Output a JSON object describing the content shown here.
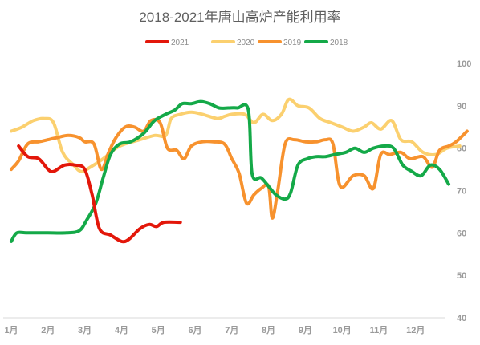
{
  "chart_data": {
    "type": "line",
    "title": "2018-2021年唐山高炉产能利用率",
    "xlabel": "",
    "ylabel": "",
    "x_categories": [
      "1月",
      "2月",
      "3月",
      "4月",
      "5月",
      "6月",
      "7月",
      "8月",
      "9月",
      "10月",
      "11月",
      "12月"
    ],
    "x_range": [
      1,
      13.2
    ],
    "ylim": [
      40,
      100
    ],
    "y_ticks": [
      40,
      50,
      60,
      70,
      80,
      90,
      100
    ],
    "y_axis_side": "right",
    "grid": false,
    "legend_position": "top-center",
    "series": [
      {
        "name": "2021",
        "color": "#e3170a",
        "points": [
          [
            1.2,
            80.5
          ],
          [
            1.45,
            78.0
          ],
          [
            1.75,
            77.5
          ],
          [
            2.0,
            75.0
          ],
          [
            2.15,
            74.5
          ],
          [
            2.45,
            76.0
          ],
          [
            2.75,
            76.0
          ],
          [
            3.0,
            75.0
          ],
          [
            3.2,
            69.0
          ],
          [
            3.4,
            61.0
          ],
          [
            3.7,
            59.5
          ],
          [
            4.0,
            58.0
          ],
          [
            4.2,
            58.5
          ],
          [
            4.5,
            61.0
          ],
          [
            4.75,
            62.0
          ],
          [
            4.95,
            61.5
          ],
          [
            5.15,
            62.5
          ],
          [
            5.6,
            62.5
          ]
        ]
      },
      {
        "name": "2020",
        "color": "#fbd06f",
        "points": [
          [
            1.0,
            84.0
          ],
          [
            1.3,
            85.0
          ],
          [
            1.6,
            86.5
          ],
          [
            1.9,
            87.0
          ],
          [
            2.15,
            86.0
          ],
          [
            2.4,
            79.0
          ],
          [
            2.7,
            76.0
          ],
          [
            2.9,
            74.5
          ],
          [
            3.15,
            75.5
          ],
          [
            3.5,
            77.5
          ],
          [
            3.85,
            80.0
          ],
          [
            4.1,
            81.0
          ],
          [
            4.5,
            82.0
          ],
          [
            4.9,
            83.0
          ],
          [
            5.2,
            83.0
          ],
          [
            5.35,
            87.0
          ],
          [
            5.6,
            88.0
          ],
          [
            5.9,
            88.5
          ],
          [
            6.2,
            88.0
          ],
          [
            6.6,
            87.0
          ],
          [
            6.8,
            87.5
          ],
          [
            7.0,
            88.0
          ],
          [
            7.35,
            88.0
          ],
          [
            7.6,
            86.0
          ],
          [
            7.85,
            88.0
          ],
          [
            8.1,
            86.5
          ],
          [
            8.35,
            88.0
          ],
          [
            8.55,
            91.5
          ],
          [
            8.8,
            90.0
          ],
          [
            9.1,
            89.5
          ],
          [
            9.4,
            87.0
          ],
          [
            9.7,
            86.0
          ],
          [
            10.0,
            85.0
          ],
          [
            10.3,
            84.0
          ],
          [
            10.6,
            85.0
          ],
          [
            10.8,
            86.0
          ],
          [
            11.05,
            84.5
          ],
          [
            11.35,
            86.5
          ],
          [
            11.6,
            82.0
          ],
          [
            11.9,
            81.5
          ],
          [
            12.2,
            79.0
          ],
          [
            12.55,
            78.5
          ],
          [
            12.85,
            80.0
          ],
          [
            13.2,
            80.5
          ]
        ]
      },
      {
        "name": "2019",
        "color": "#f7922e",
        "points": [
          [
            1.0,
            75.0
          ],
          [
            1.2,
            77.0
          ],
          [
            1.45,
            81.0
          ],
          [
            1.75,
            81.5
          ],
          [
            2.0,
            82.0
          ],
          [
            2.25,
            82.5
          ],
          [
            2.55,
            83.0
          ],
          [
            2.85,
            82.5
          ],
          [
            3.0,
            81.5
          ],
          [
            3.25,
            81.0
          ],
          [
            3.45,
            75.0
          ],
          [
            3.65,
            79.0
          ],
          [
            3.85,
            82.5
          ],
          [
            4.1,
            85.0
          ],
          [
            4.35,
            85.0
          ],
          [
            4.6,
            84.0
          ],
          [
            4.8,
            86.5
          ],
          [
            5.05,
            86.0
          ],
          [
            5.25,
            80.0
          ],
          [
            5.5,
            79.5
          ],
          [
            5.7,
            77.5
          ],
          [
            5.9,
            80.5
          ],
          [
            6.2,
            81.5
          ],
          [
            6.5,
            81.5
          ],
          [
            6.8,
            81.0
          ],
          [
            7.0,
            77.5
          ],
          [
            7.2,
            74.0
          ],
          [
            7.4,
            67.0
          ],
          [
            7.6,
            69.0
          ],
          [
            7.8,
            70.5
          ],
          [
            8.0,
            71.0
          ],
          [
            8.1,
            63.5
          ],
          [
            8.25,
            70.0
          ],
          [
            8.45,
            81.0
          ],
          [
            8.7,
            82.0
          ],
          [
            9.0,
            81.5
          ],
          [
            9.3,
            81.5
          ],
          [
            9.55,
            82.0
          ],
          [
            9.75,
            81.0
          ],
          [
            9.95,
            71.0
          ],
          [
            10.3,
            73.5
          ],
          [
            10.6,
            73.5
          ],
          [
            10.85,
            70.5
          ],
          [
            11.05,
            78.5
          ],
          [
            11.3,
            78.5
          ],
          [
            11.6,
            79.0
          ],
          [
            11.85,
            77.5
          ],
          [
            12.2,
            78.0
          ],
          [
            12.45,
            75.5
          ],
          [
            12.65,
            79.5
          ],
          [
            12.9,
            80.5
          ],
          [
            13.1,
            81.5
          ],
          [
            13.4,
            84.0
          ]
        ]
      },
      {
        "name": "2018",
        "color": "#14a948",
        "points": [
          [
            1.0,
            58.0
          ],
          [
            1.15,
            60.0
          ],
          [
            1.4,
            60.0
          ],
          [
            1.7,
            60.0
          ],
          [
            2.0,
            60.0
          ],
          [
            2.5,
            60.0
          ],
          [
            2.85,
            60.5
          ],
          [
            3.05,
            63.0
          ],
          [
            3.3,
            67.0
          ],
          [
            3.5,
            73.0
          ],
          [
            3.7,
            78.5
          ],
          [
            3.95,
            81.0
          ],
          [
            4.25,
            81.5
          ],
          [
            4.6,
            83.5
          ],
          [
            4.9,
            86.5
          ],
          [
            5.2,
            88.0
          ],
          [
            5.45,
            89.0
          ],
          [
            5.65,
            90.5
          ],
          [
            5.9,
            90.5
          ],
          [
            6.15,
            91.0
          ],
          [
            6.4,
            90.5
          ],
          [
            6.65,
            89.5
          ],
          [
            6.9,
            89.5
          ],
          [
            7.15,
            89.5
          ],
          [
            7.45,
            89.0
          ],
          [
            7.55,
            74.0
          ],
          [
            7.8,
            73.0
          ],
          [
            8.0,
            71.0
          ],
          [
            8.2,
            69.0
          ],
          [
            8.45,
            68.0
          ],
          [
            8.6,
            69.5
          ],
          [
            8.8,
            76.0
          ],
          [
            9.05,
            77.5
          ],
          [
            9.3,
            78.0
          ],
          [
            9.55,
            78.0
          ],
          [
            9.8,
            78.5
          ],
          [
            10.1,
            79.0
          ],
          [
            10.35,
            80.0
          ],
          [
            10.6,
            79.0
          ],
          [
            10.85,
            80.0
          ],
          [
            11.15,
            80.5
          ],
          [
            11.4,
            80.0
          ],
          [
            11.65,
            76.0
          ],
          [
            11.9,
            74.5
          ],
          [
            12.15,
            73.5
          ],
          [
            12.4,
            76.0
          ],
          [
            12.65,
            75.0
          ],
          [
            12.9,
            71.5
          ]
        ]
      }
    ]
  }
}
